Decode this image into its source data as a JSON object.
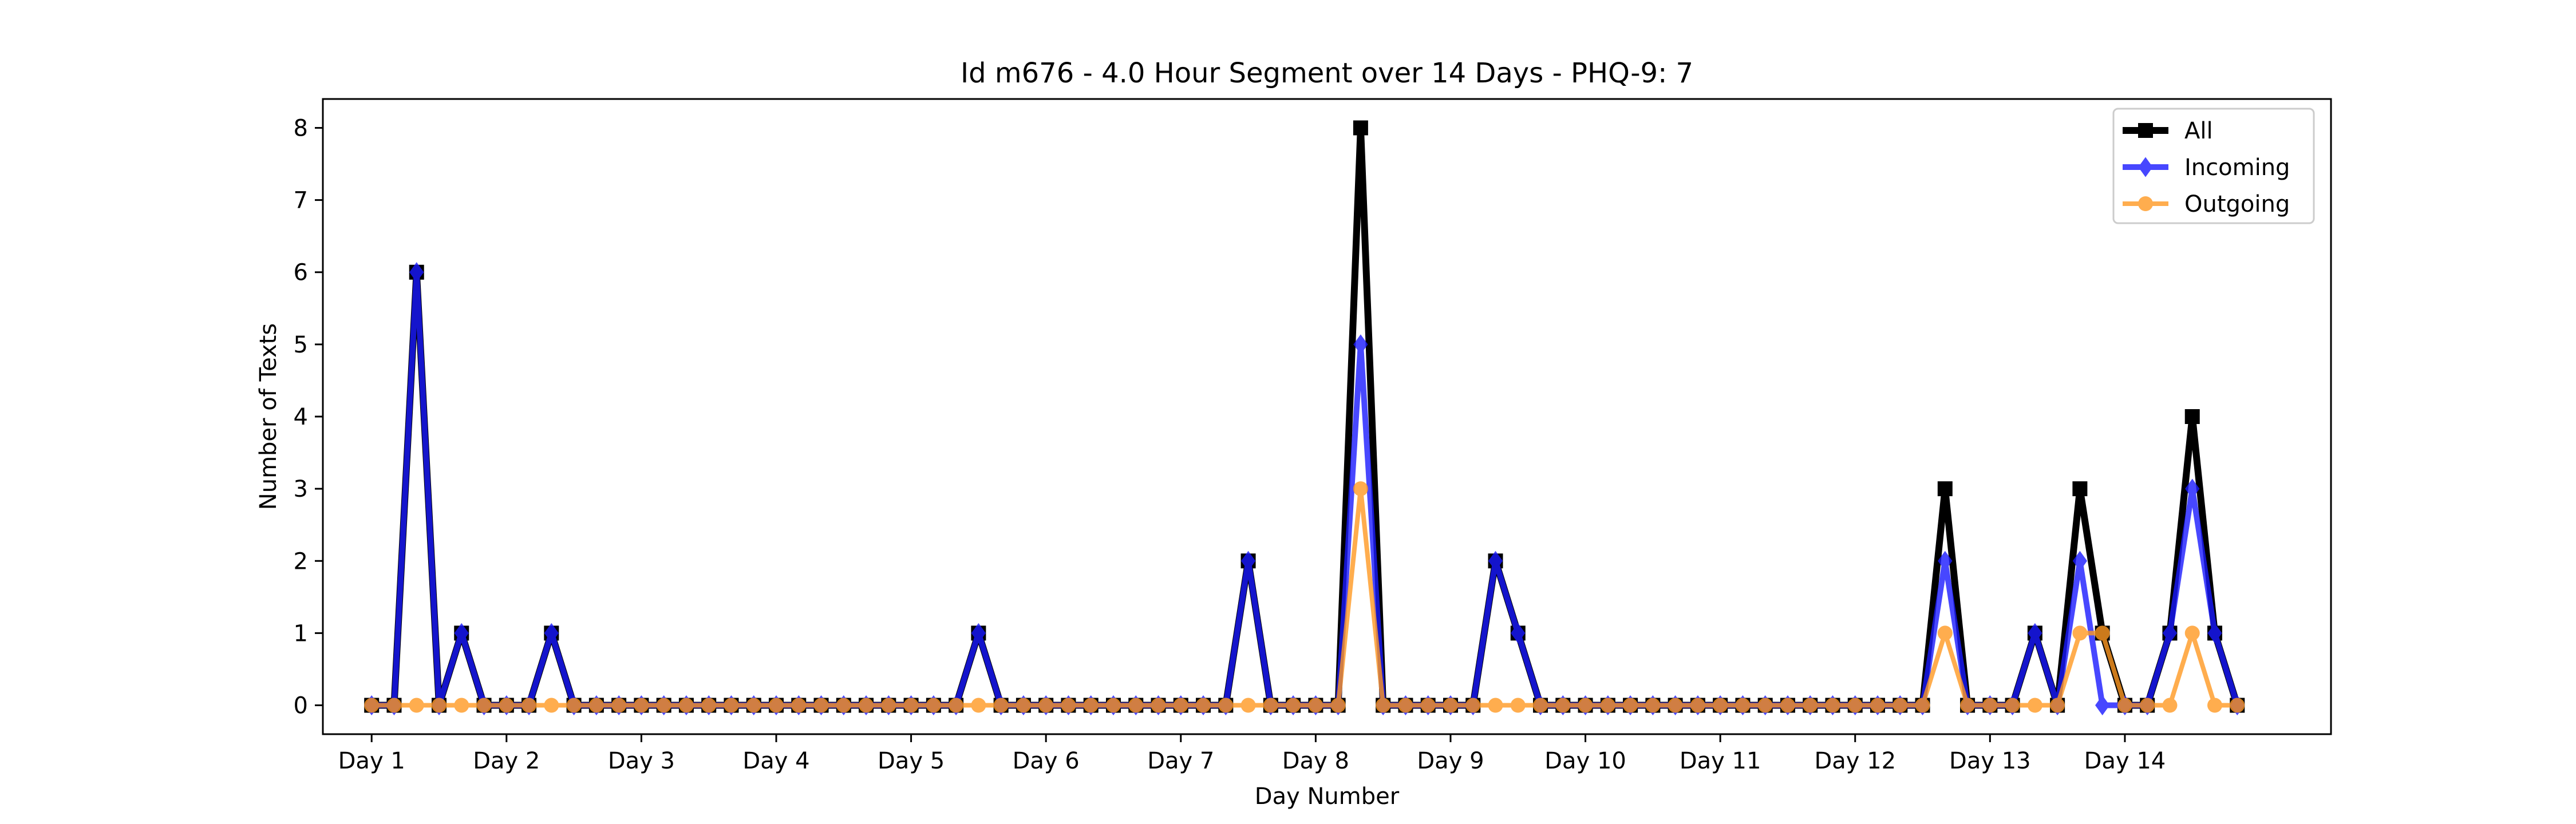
{
  "chart_data": {
    "type": "line",
    "title": "Id m676 - 4.0 Hour Segment over 14 Days - PHQ-9: 7",
    "xlabel": "Day Number",
    "ylabel": "Number of Texts",
    "ylim": [
      -0.4,
      8.4
    ],
    "xlim": [
      -2.17,
      87.17
    ],
    "yticks": [
      0,
      1,
      2,
      3,
      4,
      5,
      6,
      7,
      8
    ],
    "xticks": [
      0,
      6,
      12,
      18,
      24,
      30,
      36,
      42,
      48,
      54,
      60,
      66,
      72,
      78
    ],
    "xtick_labels": [
      "Day 1",
      "Day 2",
      "Day 3",
      "Day 4",
      "Day 5",
      "Day 6",
      "Day 7",
      "Day 8",
      "Day 9",
      "Day 10",
      "Day 11",
      "Day 12",
      "Day 13",
      "Day 14"
    ],
    "grid": false,
    "legend_position": "top-right",
    "x": [
      0,
      1,
      2,
      3,
      4,
      5,
      6,
      7,
      8,
      9,
      10,
      11,
      12,
      13,
      14,
      15,
      16,
      17,
      18,
      19,
      20,
      21,
      22,
      23,
      24,
      25,
      26,
      27,
      28,
      29,
      30,
      31,
      32,
      33,
      34,
      35,
      36,
      37,
      38,
      39,
      40,
      41,
      42,
      43,
      44,
      45,
      46,
      47,
      48,
      49,
      50,
      51,
      52,
      53,
      54,
      55,
      56,
      57,
      58,
      59,
      60,
      61,
      62,
      63,
      64,
      65,
      66,
      67,
      68,
      69,
      70,
      71,
      72,
      73,
      74,
      75,
      76,
      77,
      78,
      79,
      80,
      81,
      82,
      83
    ],
    "series": [
      {
        "name": "All",
        "color": "#000000",
        "marker": "square",
        "values": [
          0,
          0,
          6,
          0,
          1,
          0,
          0,
          0,
          1,
          0,
          0,
          0,
          0,
          0,
          0,
          0,
          0,
          0,
          0,
          0,
          0,
          0,
          0,
          0,
          0,
          0,
          0,
          1,
          0,
          0,
          0,
          0,
          0,
          0,
          0,
          0,
          0,
          0,
          0,
          2,
          0,
          0,
          0,
          0,
          8,
          0,
          0,
          0,
          0,
          0,
          2,
          1,
          0,
          0,
          0,
          0,
          0,
          0,
          0,
          0,
          0,
          0,
          0,
          0,
          0,
          0,
          0,
          0,
          0,
          0,
          3,
          0,
          0,
          0,
          1,
          0,
          3,
          1,
          0,
          0,
          1,
          4,
          1,
          0
        ]
      },
      {
        "name": "Incoming",
        "color": "#1a1aff",
        "marker": "diamond",
        "values": [
          0,
          0,
          6,
          0,
          1,
          0,
          0,
          0,
          1,
          0,
          0,
          0,
          0,
          0,
          0,
          0,
          0,
          0,
          0,
          0,
          0,
          0,
          0,
          0,
          0,
          0,
          0,
          1,
          0,
          0,
          0,
          0,
          0,
          0,
          0,
          0,
          0,
          0,
          0,
          2,
          0,
          0,
          0,
          0,
          5,
          0,
          0,
          0,
          0,
          0,
          2,
          1,
          0,
          0,
          0,
          0,
          0,
          0,
          0,
          0,
          0,
          0,
          0,
          0,
          0,
          0,
          0,
          0,
          0,
          0,
          2,
          0,
          0,
          0,
          1,
          0,
          2,
          0,
          0,
          0,
          1,
          3,
          1,
          0
        ]
      },
      {
        "name": "Outgoing",
        "color": "#ff9922",
        "marker": "circle",
        "values": [
          0,
          0,
          0,
          0,
          0,
          0,
          0,
          0,
          0,
          0,
          0,
          0,
          0,
          0,
          0,
          0,
          0,
          0,
          0,
          0,
          0,
          0,
          0,
          0,
          0,
          0,
          0,
          0,
          0,
          0,
          0,
          0,
          0,
          0,
          0,
          0,
          0,
          0,
          0,
          0,
          0,
          0,
          0,
          0,
          3,
          0,
          0,
          0,
          0,
          0,
          0,
          0,
          0,
          0,
          0,
          0,
          0,
          0,
          0,
          0,
          0,
          0,
          0,
          0,
          0,
          0,
          0,
          0,
          0,
          0,
          1,
          0,
          0,
          0,
          0,
          0,
          1,
          1,
          0,
          0,
          0,
          1,
          0,
          0
        ]
      }
    ]
  }
}
